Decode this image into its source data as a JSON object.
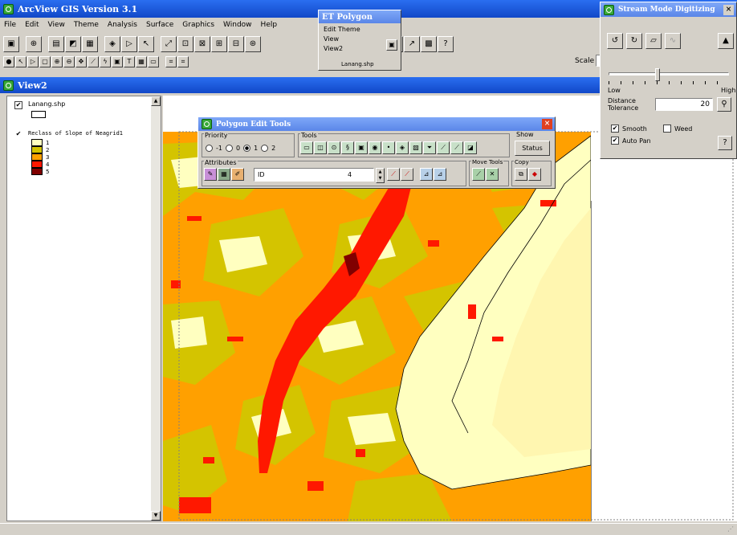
{
  "app": {
    "title": "ArcView GIS Version 3.1",
    "menu": [
      "File",
      "Edit",
      "View",
      "Theme",
      "Analysis",
      "Surface",
      "Graphics",
      "Window",
      "Help"
    ],
    "scale_label": "Scale"
  },
  "view": {
    "title": "View2"
  },
  "toc": {
    "theme1": {
      "name": "Lanang.shp",
      "checked": true
    },
    "theme2": {
      "name": "Reclass of Slope of Neagrid1",
      "checked": true
    },
    "classes": [
      {
        "label": "1",
        "color": "#ffffc0"
      },
      {
        "label": "2",
        "color": "#d4c400"
      },
      {
        "label": "3",
        "color": "#ffa000"
      },
      {
        "label": "4",
        "color": "#ff1800"
      },
      {
        "label": "5",
        "color": "#800000"
      }
    ]
  },
  "et_polygon": {
    "title": "ET Polygon",
    "items": [
      "Edit Theme",
      "View",
      "View2",
      "Lanang.shp"
    ]
  },
  "stream": {
    "title": "Stream Mode Digitizing",
    "low": "Low",
    "high": "High",
    "tolerance_label_1": "Distance",
    "tolerance_label_2": "Tolerance",
    "tolerance_value": "20",
    "smooth": "Smooth",
    "weed": "Weed",
    "autopan": "Auto Pan",
    "slider_fraction": 0.4
  },
  "pet": {
    "title": "Polygon Edit Tools",
    "priority_label": "Priority",
    "radios": [
      "-1",
      "0",
      "1",
      "2"
    ],
    "tools_label": "Tools",
    "show_label": "Show",
    "status_button": "Status",
    "attributes_label": "Attributes",
    "attr_field": "ID",
    "attr_value": "4",
    "move_tools_label": "Move Tools",
    "copy_label": "Copy"
  },
  "colors": {
    "c1": "#ffffc0",
    "c2": "#d4c400",
    "c3": "#ffa000",
    "c4": "#ff1800",
    "c5": "#800000",
    "title_blue": "#1148c8"
  }
}
